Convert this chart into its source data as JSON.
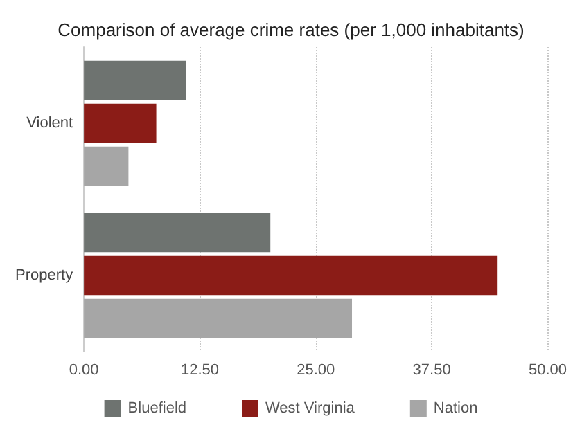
{
  "chart_data": {
    "type": "bar",
    "orientation": "horizontal",
    "title": "Comparison of average crime rates (per 1,000 inhabitants)",
    "categories": [
      "Violent",
      "Property"
    ],
    "series": [
      {
        "name": "Bluefield",
        "color": "#6e7370",
        "values": [
          11.0,
          20.1
        ]
      },
      {
        "name": "West Virginia",
        "color": "#8b1c17",
        "values": [
          7.8,
          44.6
        ]
      },
      {
        "name": "Nation",
        "color": "#a6a6a6",
        "values": [
          4.8,
          28.9
        ]
      }
    ],
    "xlim": [
      0,
      50
    ],
    "xticks": [
      {
        "value": 0,
        "label": "0.00"
      },
      {
        "value": 12.5,
        "label": "12.50"
      },
      {
        "value": 25,
        "label": "25.00"
      },
      {
        "value": 37.5,
        "label": "37.50"
      },
      {
        "value": 50,
        "label": "50.00"
      }
    ],
    "grid": "x",
    "legend": "bottom"
  }
}
